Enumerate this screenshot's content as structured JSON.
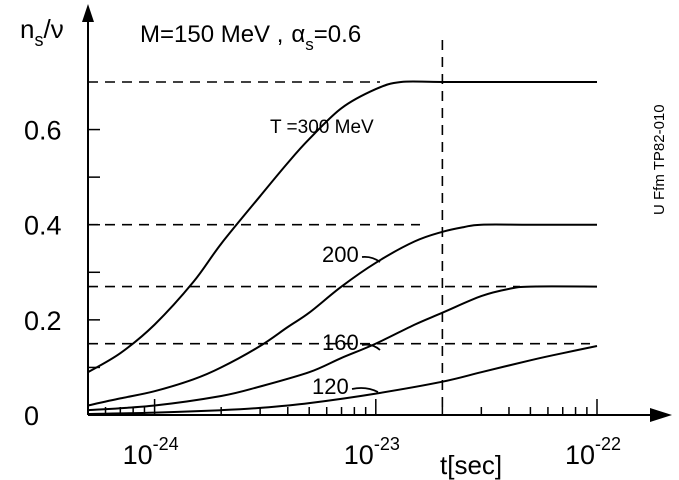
{
  "chart_data": {
    "type": "line",
    "title_parts": {
      "mass": "M=150 MeV ,",
      "alpha_sym": "α",
      "alpha_sub": "s",
      "alpha_val": "=0.6"
    },
    "ylabel_parts": {
      "n": "n",
      "sub": "s",
      "rest": "/ν"
    },
    "xlabel": "t[sec]",
    "x_scale": "log",
    "xlim": [
      5e-25,
      1e-22
    ],
    "ylim": [
      0,
      0.72
    ],
    "y_ticks": [
      0,
      0.2,
      0.4,
      0.6
    ],
    "y_tick_labels": [
      "0",
      "0.2",
      "0.4",
      "0.6"
    ],
    "x_ticks": [
      1e-24,
      1e-23,
      1e-22
    ],
    "x_tick_labels": [
      {
        "base": "10",
        "exp": "-24"
      },
      {
        "base": "10",
        "exp": "-23"
      },
      {
        "base": "10",
        "exp": "-22"
      }
    ],
    "side_text": "U Ffm TP82-010",
    "reference_time": 2e-23,
    "series": [
      {
        "name": "T =300 MeV",
        "asymptote": 0.7,
        "x": [
          5e-25,
          7e-25,
          1e-24,
          1.5e-24,
          2e-24,
          3e-24,
          4e-24,
          5e-24,
          7e-24,
          1e-23,
          1.3e-23,
          2e-23,
          5e-23,
          1e-22
        ],
        "y": [
          0.09,
          0.13,
          0.19,
          0.28,
          0.36,
          0.46,
          0.53,
          0.58,
          0.645,
          0.685,
          0.7,
          0.7,
          0.7,
          0.7
        ]
      },
      {
        "name": "200",
        "asymptote": 0.4,
        "x": [
          5e-25,
          7e-25,
          1e-24,
          1.5e-24,
          2e-24,
          3e-24,
          4e-24,
          5e-24,
          7e-24,
          1e-23,
          1.5e-23,
          2e-23,
          2.5e-23,
          3e-23,
          5e-23,
          1e-22
        ],
        "y": [
          0.02,
          0.035,
          0.05,
          0.075,
          0.1,
          0.145,
          0.185,
          0.215,
          0.27,
          0.32,
          0.365,
          0.385,
          0.395,
          0.4,
          0.4,
          0.4
        ]
      },
      {
        "name": "160",
        "asymptote": 0.27,
        "x": [
          5e-25,
          1e-24,
          2e-24,
          3e-24,
          5e-24,
          7e-24,
          1e-23,
          1.5e-23,
          2e-23,
          3e-23,
          4e-23,
          5e-23,
          1e-22
        ],
        "y": [
          0.01,
          0.02,
          0.04,
          0.06,
          0.09,
          0.12,
          0.15,
          0.19,
          0.215,
          0.25,
          0.265,
          0.27,
          0.27
        ]
      },
      {
        "name": "120",
        "asymptote": 0.15,
        "x": [
          5e-25,
          1e-24,
          2e-24,
          3e-24,
          5e-24,
          1e-23,
          2e-23,
          3e-23,
          5e-23,
          7e-23,
          1e-22
        ],
        "y": [
          0.002,
          0.005,
          0.01,
          0.015,
          0.025,
          0.045,
          0.07,
          0.09,
          0.115,
          0.13,
          0.145
        ]
      }
    ]
  }
}
